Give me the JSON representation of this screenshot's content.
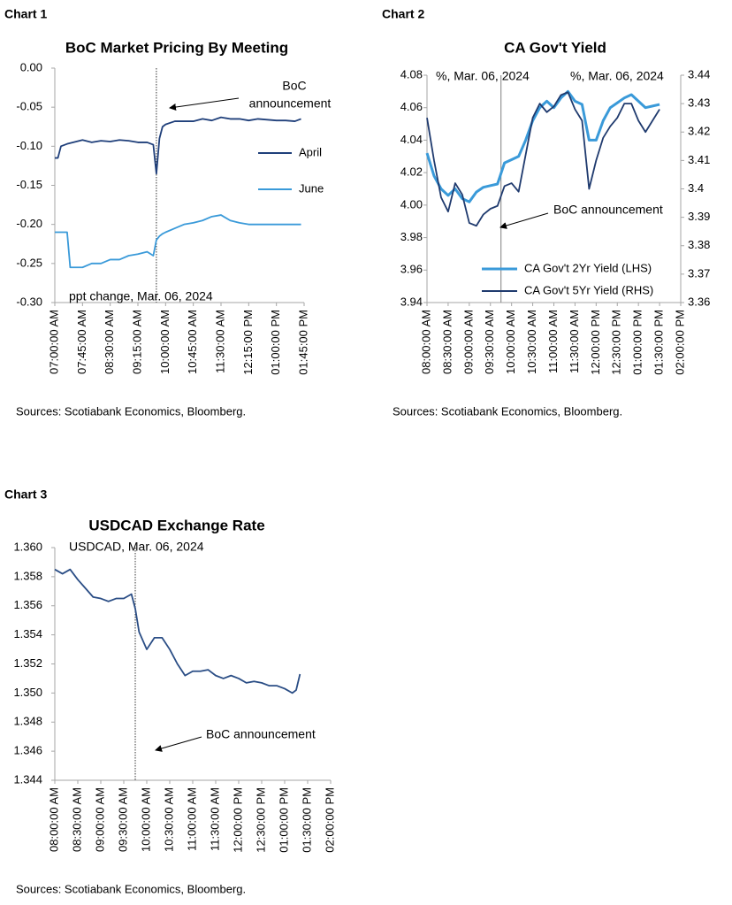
{
  "chart_data": [
    {
      "type": "line",
      "label": "Chart 1",
      "title": "BoC Market Pricing By Meeting",
      "annotations": [
        "BoC",
        "announcement",
        "ppt change, Mar. 06, 2024"
      ],
      "source": "Sources: Scotiabank Economics, Bloomberg.",
      "vline": 585,
      "legend": "right",
      "x": [
        420,
        425,
        430,
        440,
        445,
        455,
        465,
        480,
        495,
        510,
        525,
        540,
        555,
        570,
        580,
        585,
        590,
        595,
        600,
        615,
        630,
        645,
        660,
        675,
        690,
        705,
        720,
        735,
        750,
        765,
        780,
        795,
        810,
        820
      ],
      "series": [
        {
          "name": "April",
          "color": "#1f3f7a",
          "values": [
            -0.115,
            -0.115,
            -0.1,
            -0.097,
            -0.096,
            -0.094,
            -0.092,
            -0.095,
            -0.093,
            -0.094,
            -0.092,
            -0.093,
            -0.095,
            -0.095,
            -0.098,
            -0.135,
            -0.09,
            -0.075,
            -0.072,
            -0.068,
            -0.068,
            -0.068,
            -0.065,
            -0.067,
            -0.063,
            -0.065,
            -0.065,
            -0.067,
            -0.065,
            -0.066,
            -0.067,
            -0.067,
            -0.068,
            -0.065
          ]
        },
        {
          "name": "June",
          "color": "#3a9ad9",
          "values": [
            -0.21,
            -0.21,
            -0.21,
            -0.21,
            -0.255,
            -0.255,
            -0.255,
            -0.25,
            -0.25,
            -0.245,
            -0.245,
            -0.24,
            -0.238,
            -0.235,
            -0.24,
            -0.22,
            -0.215,
            -0.212,
            -0.21,
            -0.205,
            -0.2,
            -0.198,
            -0.195,
            -0.19,
            -0.188,
            -0.195,
            -0.198,
            -0.2,
            -0.2,
            -0.2,
            -0.2,
            -0.2,
            -0.2,
            -0.2
          ]
        }
      ],
      "xlim": [
        420,
        825
      ],
      "xticks": [
        {
          "value": 420,
          "label": "07:00:00 AM"
        },
        {
          "value": 465,
          "label": "07:45:00 AM"
        },
        {
          "value": 510,
          "label": "08:30:00 AM"
        },
        {
          "value": 555,
          "label": "09:15:00 AM"
        },
        {
          "value": 600,
          "label": "10:00:00 AM"
        },
        {
          "value": 645,
          "label": "10:45:00 AM"
        },
        {
          "value": 690,
          "label": "11:30:00 AM"
        },
        {
          "value": 735,
          "label": "12:15:00 PM"
        },
        {
          "value": 780,
          "label": "01:00:00 PM"
        },
        {
          "value": 825,
          "label": "01:45:00 PM"
        }
      ],
      "ylim": [
        -0.3,
        0
      ],
      "yticks": [
        {
          "value": 0,
          "label": "0.00"
        },
        -0.05,
        {
          "value": -0.1,
          "label": "-0.10"
        },
        -0.15,
        {
          "value": -0.2,
          "label": "-0.20"
        },
        -0.25,
        {
          "value": -0.3,
          "label": "-0.30"
        }
      ]
    },
    {
      "type": "line",
      "label": "Chart 2",
      "title": "CA Gov't Yield",
      "annotations": [
        "%, Mar. 06, 2024",
        "%, Mar. 06, 2024",
        "BoC announcement"
      ],
      "source": "Sources: Scotiabank Economics, Bloomberg.",
      "vline": 585,
      "legend": "bottom-right",
      "x": [
        480,
        490,
        500,
        510,
        520,
        530,
        540,
        550,
        560,
        570,
        580,
        590,
        600,
        610,
        620,
        630,
        640,
        650,
        660,
        670,
        680,
        690,
        700,
        710,
        720,
        730,
        740,
        750,
        760,
        770,
        780,
        790,
        800,
        810
      ],
      "series": [
        {
          "name": "CA Gov't 2Yr Yield (LHS)",
          "color": "#3a9ad9",
          "values": [
            4.032,
            4.018,
            4.01,
            4.006,
            4.01,
            4.004,
            4.002,
            4.008,
            4.011,
            4.012,
            4.013,
            4.026,
            4.028,
            4.03,
            4.04,
            4.052,
            4.06,
            4.064,
            4.06,
            4.066,
            4.07,
            4.064,
            4.062,
            4.04,
            4.04,
            4.052,
            4.06,
            4.063,
            4.066,
            4.068,
            4.064,
            4.06,
            4.061,
            4.062
          ]
        },
        {
          "name": "CA Gov't 5Yr Yield (RHS)",
          "color": "#1f3a6e",
          "axis": "y2",
          "values": [
            3.425,
            3.41,
            3.397,
            3.392,
            3.402,
            3.398,
            3.388,
            3.387,
            3.391,
            3.393,
            3.394,
            3.401,
            3.402,
            3.399,
            3.412,
            3.425,
            3.43,
            3.427,
            3.429,
            3.433,
            3.434,
            3.428,
            3.424,
            3.4,
            3.41,
            3.418,
            3.422,
            3.425,
            3.43,
            3.43,
            3.424,
            3.42,
            3.424,
            3.428
          ]
        }
      ],
      "xlim": [
        480,
        840
      ],
      "xticks": [
        {
          "value": 480,
          "label": "08:00:00 AM"
        },
        {
          "value": 510,
          "label": "08:30:00 AM"
        },
        {
          "value": 540,
          "label": "09:00:00 AM"
        },
        {
          "value": 570,
          "label": "09:30:00 AM"
        },
        {
          "value": 600,
          "label": "10:00:00 AM"
        },
        {
          "value": 630,
          "label": "10:30:00 AM"
        },
        {
          "value": 660,
          "label": "11:00:00 AM"
        },
        {
          "value": 690,
          "label": "11:30:00 AM"
        },
        {
          "value": 720,
          "label": "12:00:00 PM"
        },
        {
          "value": 750,
          "label": "12:30:00 PM"
        },
        {
          "value": 780,
          "label": "01:00:00 PM"
        },
        {
          "value": 810,
          "label": "01:30:00 PM"
        },
        {
          "value": 840,
          "label": "02:00:00 PM"
        }
      ],
      "ylim": [
        3.94,
        4.08
      ],
      "yticks": [
        3.94,
        3.96,
        3.98,
        {
          "value": 4,
          "label": "4.00"
        },
        4.02,
        4.04,
        4.06,
        4.08
      ],
      "y2lim": [
        3.36,
        3.44
      ],
      "y2ticks": [
        3.36,
        3.37,
        3.38,
        3.39,
        3.4,
        3.41,
        3.42,
        3.43,
        3.44
      ]
    },
    {
      "type": "line",
      "label": "Chart 3",
      "title": "USDCAD Exchange Rate",
      "annotations": [
        "USDCAD, Mar. 06, 2024",
        "BoC announcement"
      ],
      "source": "Sources: Scotiabank Economics, Bloomberg.",
      "vline": 585,
      "x": [
        480,
        490,
        500,
        510,
        520,
        530,
        540,
        550,
        560,
        570,
        580,
        585,
        590,
        600,
        610,
        620,
        630,
        640,
        650,
        660,
        670,
        680,
        690,
        700,
        710,
        720,
        730,
        740,
        750,
        760,
        770,
        780,
        790,
        795,
        800
      ],
      "series": [
        {
          "color": "#2a4d85",
          "values": [
            1.3585,
            1.3582,
            1.3585,
            1.3578,
            1.3572,
            1.3566,
            1.3565,
            1.3563,
            1.3565,
            1.3565,
            1.3568,
            1.3558,
            1.3542,
            1.353,
            1.3538,
            1.3538,
            1.353,
            1.352,
            1.3512,
            1.3515,
            1.3515,
            1.3516,
            1.3512,
            1.351,
            1.3512,
            1.351,
            1.3507,
            1.3508,
            1.3507,
            1.3505,
            1.3505,
            1.3503,
            1.35,
            1.3502,
            1.3513
          ]
        }
      ],
      "xlim": [
        480,
        840
      ],
      "xticks": [
        {
          "value": 480,
          "label": "08:00:00 AM"
        },
        {
          "value": 510,
          "label": "08:30:00 AM"
        },
        {
          "value": 540,
          "label": "09:00:00 AM"
        },
        {
          "value": 570,
          "label": "09:30:00 AM"
        },
        {
          "value": 600,
          "label": "10:00:00 AM"
        },
        {
          "value": 630,
          "label": "10:30:00 AM"
        },
        {
          "value": 660,
          "label": "11:00:00 AM"
        },
        {
          "value": 690,
          "label": "11:30:00 AM"
        },
        {
          "value": 720,
          "label": "12:00:00 PM"
        },
        {
          "value": 750,
          "label": "12:30:00 PM"
        },
        {
          "value": 780,
          "label": "01:00:00 PM"
        },
        {
          "value": 810,
          "label": "01:30:00 PM"
        },
        {
          "value": 840,
          "label": "02:00:00 PM"
        }
      ],
      "ylim": [
        1.344,
        1.36
      ],
      "yticks": [
        1.344,
        1.346,
        1.348,
        {
          "value": 1.35,
          "label": "1.350"
        },
        1.352,
        1.354,
        1.356,
        1.358,
        {
          "value": 1.36,
          "label": "1.360"
        }
      ]
    }
  ]
}
